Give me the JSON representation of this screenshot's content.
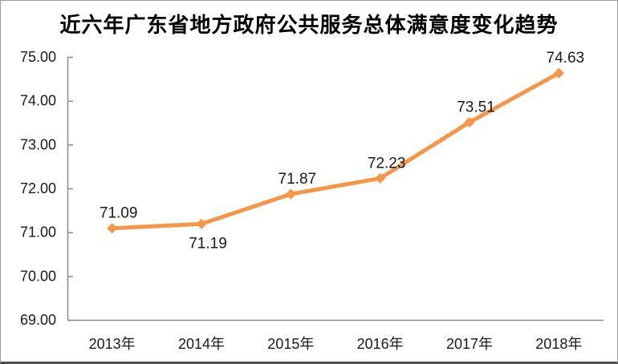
{
  "chart_data": {
    "type": "line",
    "title": "近六年广东省地方政府公共服务总体满意度变化趋势",
    "categories": [
      "2013年",
      "2014年",
      "2015年",
      "2016年",
      "2017年",
      "2018年"
    ],
    "values": [
      71.09,
      71.19,
      71.87,
      72.23,
      73.51,
      74.63
    ],
    "data_labels": [
      "71.09",
      "71.19",
      "71.87",
      "72.23",
      "73.51",
      "74.63"
    ],
    "data_label_positions": [
      "above",
      "below",
      "above",
      "above",
      "above",
      "above"
    ],
    "xlabel": "",
    "ylabel": "",
    "ylim": [
      69,
      75
    ],
    "y_tick_step": 1,
    "y_tick_labels": [
      "69.00",
      "70.00",
      "71.00",
      "72.00",
      "73.00",
      "74.00",
      "75.00"
    ],
    "grid": false,
    "legend": "none",
    "marker": "diamond",
    "colors": {
      "line": "#F79646",
      "marker": "#F79646",
      "axis": "#8c8c8c",
      "tick_text": "#1a1a1a",
      "data_label_text": "#1a1a1a"
    }
  }
}
